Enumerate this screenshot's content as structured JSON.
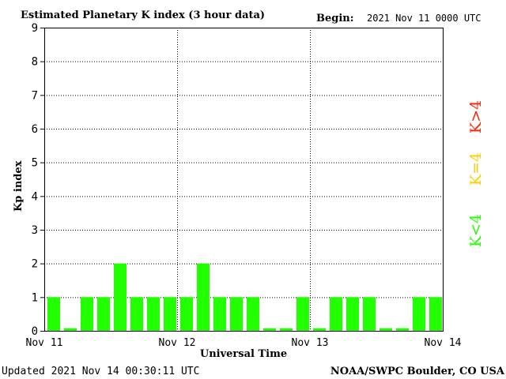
{
  "chart_data": {
    "type": "bar",
    "title": "Estimated Planetary K index (3 hour data)",
    "begin_label": "Begin:",
    "begin_value": "2021 Nov 11 0000 UTC",
    "ylabel": "Kp index",
    "xlabel": "Universal Time",
    "ylim": [
      0,
      9
    ],
    "yticks": [
      "0",
      "1",
      "2",
      "3",
      "4",
      "5",
      "6",
      "7",
      "8",
      "9"
    ],
    "xticks": [
      "Nov 11",
      "Nov 12",
      "Nov 13",
      "Nov 14"
    ],
    "bins_per_day": 8,
    "values": [
      1,
      0,
      1,
      1,
      2,
      1,
      1,
      1,
      1,
      2,
      1,
      1,
      1,
      0,
      0,
      1,
      0,
      1,
      1,
      1,
      0,
      0,
      1,
      1
    ],
    "bar_color": "#22ff00",
    "grid": "dotted at each day boundary and each integer Kp",
    "legend": [
      {
        "label": "K<4",
        "color": "#22ff00"
      },
      {
        "label": "K=4",
        "color": "#ffcc00"
      },
      {
        "label": "K>4",
        "color": "#ff2200"
      }
    ]
  },
  "footer": {
    "updated": "Updated 2021 Nov 14 00:30:11 UTC",
    "credit": "NOAA/SWPC Boulder, CO USA"
  }
}
